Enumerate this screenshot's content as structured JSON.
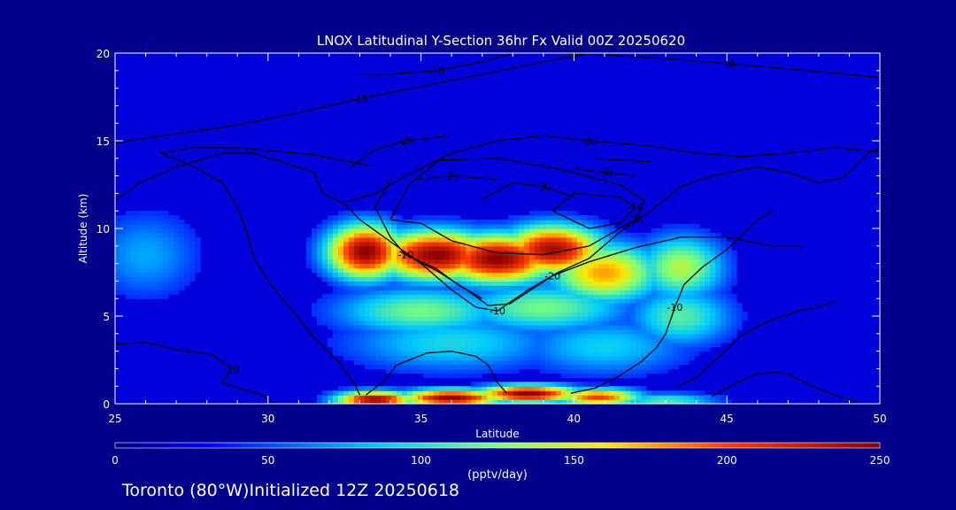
{
  "chart_data": {
    "type": "heatmap",
    "title": "LNOX Latitudinal Y-Section 36hr  Fx Valid 00Z 20250620",
    "xlabel": "Latitude",
    "ylabel": "Altitude (km)",
    "xlim": [
      25,
      50
    ],
    "ylim": [
      0,
      20
    ],
    "x_ticks": [
      "25",
      "30",
      "35",
      "40",
      "45",
      "50"
    ],
    "y_ticks": [
      "0",
      "5",
      "10",
      "15",
      "20"
    ],
    "colorbar": {
      "ticks": [
        "0",
        "50",
        "100",
        "150",
        "200",
        "250"
      ],
      "range": [
        0,
        250
      ],
      "unit_label": "(pptv/day)"
    },
    "field_blobs": [
      {
        "lat": 26.0,
        "alt": 8.5,
        "value": 60,
        "sigma_lat": 1.3,
        "sigma_alt": 1.8
      },
      {
        "lat": 33.2,
        "alt": 8.7,
        "value": 250,
        "sigma_lat": 0.9,
        "sigma_alt": 1.1
      },
      {
        "lat": 35.5,
        "alt": 8.5,
        "value": 250,
        "sigma_lat": 1.4,
        "sigma_alt": 1.0
      },
      {
        "lat": 37.5,
        "alt": 8.3,
        "value": 250,
        "sigma_lat": 1.4,
        "sigma_alt": 1.0
      },
      {
        "lat": 39.3,
        "alt": 8.8,
        "value": 240,
        "sigma_lat": 1.2,
        "sigma_alt": 1.0
      },
      {
        "lat": 41.0,
        "alt": 7.5,
        "value": 170,
        "sigma_lat": 1.3,
        "sigma_alt": 1.2
      },
      {
        "lat": 43.5,
        "alt": 7.8,
        "value": 130,
        "sigma_lat": 1.0,
        "sigma_alt": 1.3
      },
      {
        "lat": 35.0,
        "alt": 5.3,
        "value": 110,
        "sigma_lat": 2.0,
        "sigma_alt": 1.0
      },
      {
        "lat": 39.0,
        "alt": 5.5,
        "value": 110,
        "sigma_lat": 2.0,
        "sigma_alt": 1.0
      },
      {
        "lat": 43.5,
        "alt": 5.0,
        "value": 100,
        "sigma_lat": 1.2,
        "sigma_alt": 1.2
      },
      {
        "lat": 36.0,
        "alt": 3.5,
        "value": 80,
        "sigma_lat": 2.5,
        "sigma_alt": 1.2
      },
      {
        "lat": 41.0,
        "alt": 3.3,
        "value": 75,
        "sigma_lat": 2.0,
        "sigma_alt": 1.2
      },
      {
        "lat": 33.5,
        "alt": 0.25,
        "value": 250,
        "sigma_lat": 0.9,
        "sigma_alt": 0.35
      },
      {
        "lat": 36.0,
        "alt": 0.35,
        "value": 250,
        "sigma_lat": 1.2,
        "sigma_alt": 0.35
      },
      {
        "lat": 38.5,
        "alt": 0.6,
        "value": 250,
        "sigma_lat": 1.2,
        "sigma_alt": 0.35
      },
      {
        "lat": 40.8,
        "alt": 0.4,
        "value": 200,
        "sigma_lat": 1.0,
        "sigma_alt": 0.35
      },
      {
        "lat": 43.0,
        "alt": 0.2,
        "value": 100,
        "sigma_lat": 1.2,
        "sigma_alt": 0.3
      }
    ],
    "contours": [
      {
        "label": "-10",
        "points": [
          [
            25,
            14.9
          ],
          [
            27,
            15.4
          ],
          [
            29,
            15.9
          ],
          [
            31,
            16.6
          ],
          [
            33,
            17.4
          ],
          [
            35,
            18.1
          ],
          [
            37,
            18.8
          ],
          [
            39,
            19.5
          ],
          [
            40.5,
            20
          ]
        ]
      },
      {
        "label": "-10",
        "points": [
          [
            25,
            11.6
          ],
          [
            25.8,
            12.6
          ],
          [
            27,
            13.5
          ],
          [
            28.5,
            14.3
          ],
          [
            29.5,
            14.3
          ],
          [
            30.8,
            13.6
          ],
          [
            31.5,
            13.2
          ],
          [
            31.8,
            12.0
          ],
          [
            32.5,
            11.4
          ],
          [
            33,
            10.5
          ],
          [
            33.8,
            9.5
          ],
          [
            35,
            8.0
          ],
          [
            36,
            6.5
          ],
          [
            36.8,
            5.5
          ],
          [
            37.5,
            5.3
          ],
          [
            38.5,
            6.5
          ],
          [
            39.5,
            7.5
          ],
          [
            40.5,
            8.3
          ],
          [
            41.5,
            9.8
          ],
          [
            42.5,
            11.0
          ],
          [
            43.5,
            12.4
          ],
          [
            44.5,
            13.0
          ],
          [
            46,
            13.5
          ],
          [
            47,
            13.2
          ],
          [
            48,
            12.6
          ],
          [
            48.8,
            12.9
          ],
          [
            49.4,
            13.9
          ],
          [
            49.6,
            14.3
          ],
          [
            50,
            14.6
          ]
        ]
      },
      {
        "label": "-10",
        "points": [
          [
            33,
            18.8
          ],
          [
            34,
            18.8
          ],
          [
            35.5,
            19.0
          ],
          [
            37,
            19.5
          ],
          [
            38,
            20
          ]
        ]
      },
      {
        "label": "-10",
        "points": [
          [
            39.5,
            20
          ],
          [
            41,
            19.9
          ],
          [
            43,
            19.7
          ],
          [
            45,
            19.4
          ],
          [
            47,
            19.1
          ],
          [
            49,
            18.8
          ],
          [
            50,
            18.6
          ]
        ]
      },
      {
        "label": "-20",
        "points": [
          [
            32.5,
            11.5
          ],
          [
            33.5,
            12.0
          ],
          [
            34.5,
            13.0
          ],
          [
            36,
            14.3
          ],
          [
            37.5,
            15.0
          ],
          [
            39,
            15.3
          ],
          [
            40.5,
            15.0
          ],
          [
            42.5,
            14.7
          ],
          [
            44,
            14.3
          ],
          [
            45.5,
            14.1
          ],
          [
            47,
            14.3
          ],
          [
            48.5,
            14.6
          ],
          [
            50,
            14.4
          ]
        ]
      },
      {
        "label": "-20",
        "points": [
          [
            32.7,
            13.5
          ],
          [
            33.5,
            14.5
          ],
          [
            34.5,
            15.0
          ],
          [
            36,
            15.3
          ]
        ]
      },
      {
        "label": "-20",
        "points": [
          [
            34.9,
            12.8
          ],
          [
            36,
            13.0
          ],
          [
            37.5,
            12.8
          ]
        ]
      },
      {
        "label": "-20",
        "points": [
          [
            34.3,
            8.7
          ],
          [
            35.5,
            7.6
          ],
          [
            36.5,
            6.5
          ],
          [
            37.2,
            5.6
          ],
          [
            37.9,
            5.7
          ],
          [
            38.6,
            6.5
          ],
          [
            39.3,
            7.3
          ],
          [
            40.5,
            8.1
          ],
          [
            42,
            8.9
          ],
          [
            43.5,
            9.5
          ],
          [
            45,
            9.5
          ],
          [
            46.5,
            9.0
          ],
          [
            47.5,
            9.0
          ]
        ]
      },
      {
        "label": "-30",
        "points": [
          [
            34.0,
            10.5
          ],
          [
            34.6,
            12.5
          ],
          [
            35.6,
            13.9
          ],
          [
            37.5,
            14.0
          ],
          [
            39.5,
            13.4
          ],
          [
            41.5,
            12.5
          ],
          [
            42.3,
            11.6
          ],
          [
            42.0,
            10.5
          ],
          [
            40.5,
            9.0
          ],
          [
            39.0,
            8.5
          ],
          [
            37.5,
            8.6
          ],
          [
            36.0,
            9.3
          ],
          [
            35.0,
            10.3
          ],
          [
            34.0,
            10.5
          ]
        ]
      },
      {
        "label": "-30",
        "points": [
          [
            37.0,
            11.7
          ],
          [
            38.0,
            12.6
          ],
          [
            39.0,
            12.4
          ],
          [
            40.0,
            11.8
          ]
        ]
      },
      {
        "label": "-30",
        "points": [
          [
            40.0,
            13.4
          ],
          [
            41.0,
            13.2
          ],
          [
            42.0,
            13.0
          ]
        ]
      },
      {
        "label": "-40",
        "points": [
          [
            39.3,
            11.0
          ],
          [
            40.0,
            12.0
          ],
          [
            41.5,
            11.8
          ],
          [
            42.0,
            11.2
          ],
          [
            41.5,
            10.3
          ],
          [
            40.5,
            10.0
          ],
          [
            39.3,
            11.0
          ]
        ]
      },
      {
        "label": "",
        "points": [
          [
            40.7,
            14.0
          ],
          [
            41.5,
            13.9
          ],
          [
            42.5,
            13.8
          ]
        ]
      },
      {
        "label": "",
        "points": [
          [
            26.5,
            14.3
          ],
          [
            27.5,
            13.6
          ],
          [
            28.5,
            12.6
          ],
          [
            29.0,
            11.2
          ],
          [
            29.3,
            9.8
          ],
          [
            29.5,
            8.5
          ],
          [
            30.0,
            7.0
          ],
          [
            30.7,
            5.5
          ],
          [
            31.5,
            3.8
          ],
          [
            32.3,
            2.4
          ],
          [
            32.8,
            1.2
          ],
          [
            33.0,
            0.5
          ]
        ]
      },
      {
        "label": "-10",
        "points": [
          [
            25,
            3.4
          ],
          [
            26,
            3.5
          ],
          [
            27,
            3.1
          ],
          [
            28.2,
            2.8
          ],
          [
            28.8,
            2.0
          ],
          [
            28.5,
            1.2
          ],
          [
            29.8,
            0.5
          ],
          [
            30.2,
            0.0
          ]
        ]
      },
      {
        "label": "",
        "points": [
          [
            33.2,
            0.5
          ],
          [
            33.8,
            1.3
          ],
          [
            34.2,
            2.2
          ],
          [
            35.2,
            2.9
          ],
          [
            36.0,
            3.0
          ],
          [
            36.8,
            2.7
          ],
          [
            37.2,
            2.2
          ],
          [
            37.5,
            1.2
          ],
          [
            37.8,
            0.6
          ]
        ]
      },
      {
        "label": "-10",
        "points": [
          [
            34.0,
            12.8
          ],
          [
            33.5,
            11.2
          ],
          [
            34.0,
            9.5
          ],
          [
            34.5,
            8.5
          ],
          [
            35.5,
            7.7
          ],
          [
            36.2,
            6.8
          ],
          [
            37.0,
            6.0
          ]
        ]
      },
      {
        "label": "-10",
        "points": [
          [
            39.9,
            0.6
          ],
          [
            40.7,
            0.9
          ],
          [
            41.5,
            1.6
          ],
          [
            42.2,
            2.4
          ],
          [
            42.7,
            3.2
          ],
          [
            43.0,
            4.0
          ],
          [
            43.3,
            5.5
          ],
          [
            43.6,
            6.8
          ],
          [
            44.2,
            7.8
          ],
          [
            45.0,
            8.8
          ],
          [
            46.0,
            10.5
          ],
          [
            46.5,
            11.0
          ]
        ]
      },
      {
        "label": "",
        "points": [
          [
            43.4,
            1.0
          ],
          [
            44.0,
            1.5
          ],
          [
            44.8,
            2.8
          ],
          [
            45.4,
            3.8
          ],
          [
            46.2,
            4.6
          ],
          [
            47.3,
            5.3
          ],
          [
            48.0,
            5.5
          ],
          [
            48.6,
            5.9
          ]
        ]
      },
      {
        "label": "",
        "points": [
          [
            44.5,
            0.4
          ],
          [
            45.3,
            1.2
          ],
          [
            46.0,
            1.7
          ],
          [
            46.6,
            1.8
          ],
          [
            47.0,
            1.7
          ],
          [
            47.8,
            1.0
          ],
          [
            48.5,
            0.5
          ],
          [
            49.3,
            0.1
          ]
        ]
      },
      {
        "label": "",
        "points": [
          [
            33.3,
            13.6
          ],
          [
            31.5,
            14.2
          ],
          [
            29.0,
            14.6
          ],
          [
            27.5,
            14.6
          ],
          [
            26.5,
            14.3
          ]
        ]
      }
    ]
  },
  "footer": {
    "caption": "Toronto (80°W)Initialized 12Z 20250618"
  },
  "colors": {
    "background": "#00008a",
    "text": "#ffffff",
    "contour": "#000000"
  }
}
